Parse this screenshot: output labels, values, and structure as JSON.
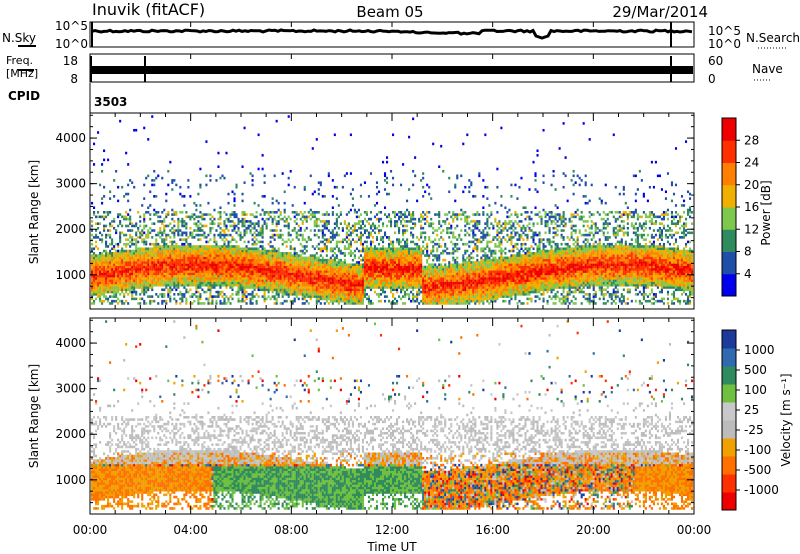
{
  "header": {
    "station": "Inuvik (fitACF)",
    "beam": "Beam 05",
    "date": "29/Mar/2014"
  },
  "noise_panel": {
    "left_label": "N.Sky",
    "left_ticks": [
      "10^5",
      "10^0"
    ],
    "right_ticks": [
      "10^5",
      "10^0"
    ],
    "right_label": "N.Search"
  },
  "freq_panel": {
    "left_label_1": "Freq.",
    "left_label_2": "[MHz]",
    "left_ticks": [
      "18",
      "8"
    ],
    "right_ticks": [
      "60",
      "0"
    ],
    "right_label": "Nave"
  },
  "cpid": {
    "label": "CPID",
    "value": "3503"
  },
  "colors": {
    "power_scale": [
      "#0000ee",
      "#1f4fa8",
      "#2f8a5e",
      "#7ec850",
      "#f0b000",
      "#ff8000",
      "#ff3000",
      "#ee0000"
    ],
    "velocity_scale": [
      "#1c3a9c",
      "#2f6ab0",
      "#2f8a5e",
      "#6fc040",
      "#c8c8c8",
      "#bcbcbc",
      "#f0a000",
      "#ff7000",
      "#ff3000",
      "#ee0000"
    ]
  },
  "chart_data": [
    {
      "type": "heatmap",
      "name": "power",
      "ylabel": "Slant Range [km]",
      "yticks": [
        "1000",
        "2000",
        "3000",
        "4000"
      ],
      "colorbar_label": "Power [dB]",
      "colorbar_ticks": [
        "4",
        "8",
        "12",
        "16",
        "20",
        "24",
        "28"
      ]
    },
    {
      "type": "heatmap",
      "name": "velocity",
      "ylabel": "Slant Range [km]",
      "yticks": [
        "1000",
        "2000",
        "3000",
        "4000"
      ],
      "colorbar_label": "Velocity [m s⁻¹]",
      "colorbar_ticks": [
        "1000",
        "500",
        "100",
        "25",
        "-25",
        "-100",
        "-500",
        "-1000"
      ],
      "xlabel": "Time UT",
      "xticks": [
        "00:00",
        "04:00",
        "08:00",
        "12:00",
        "16:00",
        "20:00",
        "00:00"
      ]
    }
  ]
}
